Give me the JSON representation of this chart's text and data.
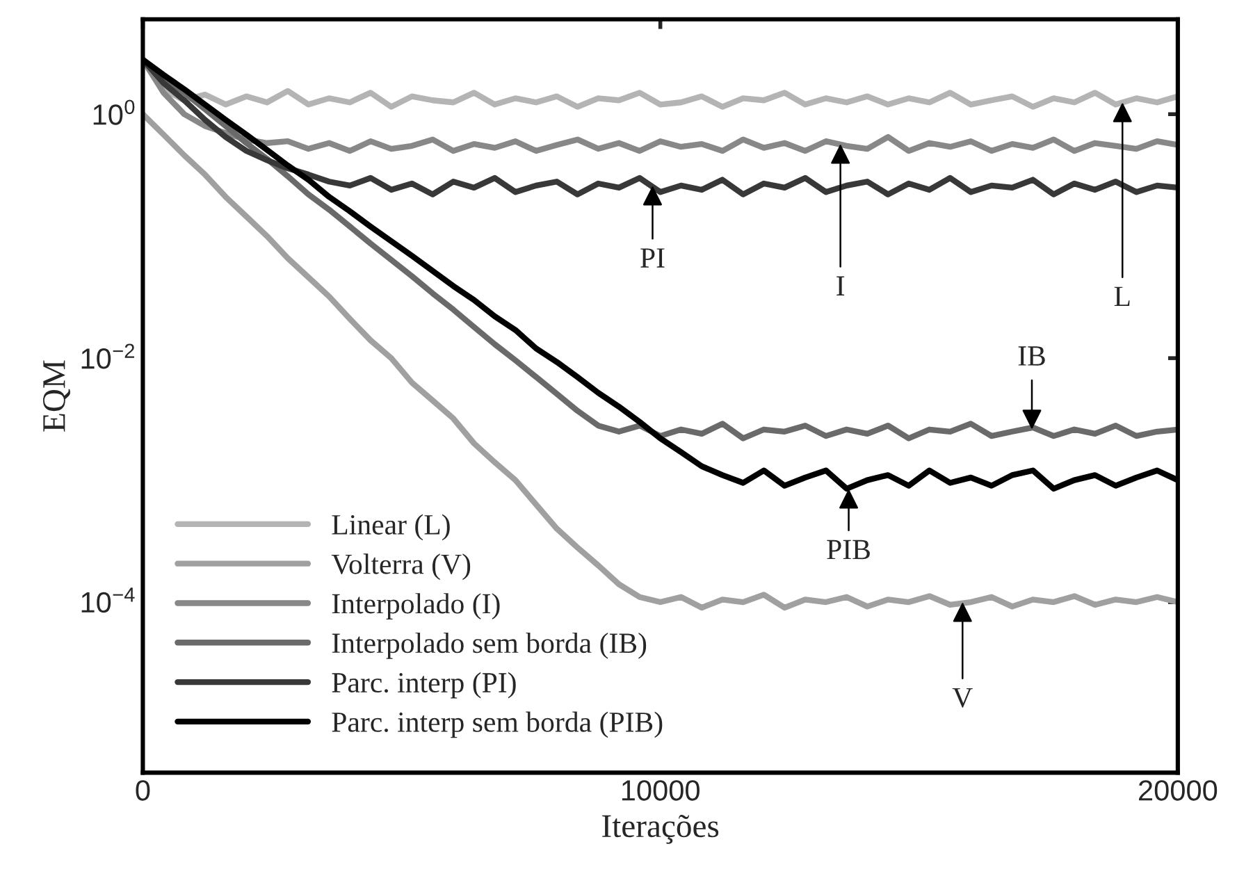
{
  "chart_data": {
    "type": "line",
    "xlabel": "Iterações",
    "ylabel": "EQM",
    "log": "y",
    "grid": false,
    "legend": "bottom left",
    "line_style": "solid",
    "marker": "none",
    "xlim": [
      0,
      20000
    ],
    "xticks": [
      0,
      10000,
      20000
    ],
    "ylim": [
      4e-06,
      6
    ],
    "yticks": [
      {
        "value": 1,
        "label": "10$^{0}$"
      },
      {
        "value": 0.01,
        "label": "10$^{−2}$"
      },
      {
        "value": 0.0001,
        "label": "10$^{−4}$"
      }
    ],
    "x": [
      0,
      400,
      800,
      1200,
      1600,
      2000,
      2400,
      2800,
      3200,
      3600,
      4000,
      4400,
      4800,
      5200,
      5600,
      6000,
      6400,
      6800,
      7200,
      7600,
      8000,
      8400,
      8800,
      9200,
      9600,
      10000,
      10400,
      10800,
      11200,
      11600,
      12000,
      12400,
      12800,
      13200,
      13600,
      14000,
      14400,
      14800,
      15200,
      15600,
      16000,
      16400,
      16800,
      17200,
      17600,
      18000,
      18400,
      18800,
      19200,
      19600,
      20000
    ],
    "series": [
      {
        "name": "Linear (L)",
        "color": "#b4b4b4",
        "values": [
          2.8,
          1.6,
          1.3,
          1.45,
          1.2,
          1.4,
          1.25,
          1.55,
          1.2,
          1.35,
          1.25,
          1.5,
          1.15,
          1.4,
          1.3,
          1.25,
          1.5,
          1.2,
          1.35,
          1.25,
          1.4,
          1.15,
          1.35,
          1.3,
          1.5,
          1.2,
          1.25,
          1.4,
          1.15,
          1.35,
          1.3,
          1.5,
          1.2,
          1.35,
          1.25,
          1.4,
          1.2,
          1.35,
          1.25,
          1.5,
          1.2,
          1.3,
          1.4,
          1.15,
          1.35,
          1.25,
          1.5,
          1.2,
          1.35,
          1.25,
          1.4
        ]
      },
      {
        "name": "Volterra (V)",
        "color": "#a0a0a0",
        "values": [
          1.0,
          0.68,
          0.46,
          0.32,
          0.21,
          0.145,
          0.1,
          0.066,
          0.046,
          0.032,
          0.021,
          0.014,
          0.01,
          0.0063,
          0.0045,
          0.0032,
          0.002,
          0.0014,
          0.001,
          0.00063,
          0.0004,
          0.00028,
          0.0002,
          0.00014,
          0.00011,
          0.0001,
          0.00011,
          9e-05,
          0.000105,
          0.0001,
          0.000115,
          9e-05,
          0.000105,
          0.0001,
          0.00011,
          9.2e-05,
          0.000105,
          0.0001,
          0.000112,
          9.5e-05,
          0.0001,
          0.00011,
          9.2e-05,
          0.000105,
          0.0001,
          0.000112,
          9.5e-05,
          0.000105,
          0.0001,
          0.00011,
          0.0001
        ]
      },
      {
        "name": "Interpolado (I)",
        "color": "#888888",
        "values": [
          2.8,
          1.5,
          1.0,
          0.8,
          0.7,
          0.62,
          0.58,
          0.6,
          0.52,
          0.58,
          0.5,
          0.6,
          0.52,
          0.55,
          0.62,
          0.5,
          0.57,
          0.53,
          0.6,
          0.5,
          0.56,
          0.62,
          0.52,
          0.58,
          0.5,
          0.6,
          0.54,
          0.57,
          0.5,
          0.62,
          0.53,
          0.58,
          0.5,
          0.6,
          0.55,
          0.52,
          0.65,
          0.5,
          0.58,
          0.54,
          0.6,
          0.5,
          0.57,
          0.53,
          0.62,
          0.5,
          0.58,
          0.55,
          0.52,
          0.6,
          0.56
        ]
      },
      {
        "name": "Interpolado sem borda (IB)",
        "color": "#6a6a6a",
        "values": [
          2.8,
          2.05,
          1.5,
          1.1,
          0.8,
          0.58,
          0.43,
          0.31,
          0.22,
          0.165,
          0.12,
          0.087,
          0.064,
          0.047,
          0.034,
          0.025,
          0.018,
          0.013,
          0.0096,
          0.007,
          0.0051,
          0.0037,
          0.0028,
          0.0025,
          0.0028,
          0.0023,
          0.0026,
          0.0024,
          0.0029,
          0.0022,
          0.0026,
          0.0025,
          0.0028,
          0.0023,
          0.0026,
          0.0024,
          0.0028,
          0.0022,
          0.0026,
          0.0025,
          0.0029,
          0.0023,
          0.0025,
          0.0027,
          0.0023,
          0.0026,
          0.0024,
          0.0028,
          0.0023,
          0.0025,
          0.0026
        ]
      },
      {
        "name": "Parc. interp (PI)",
        "color": "#383838",
        "values": [
          2.8,
          1.8,
          1.3,
          0.9,
          0.65,
          0.5,
          0.42,
          0.36,
          0.32,
          0.28,
          0.26,
          0.3,
          0.24,
          0.27,
          0.22,
          0.28,
          0.25,
          0.3,
          0.23,
          0.26,
          0.28,
          0.22,
          0.27,
          0.25,
          0.3,
          0.23,
          0.26,
          0.24,
          0.29,
          0.22,
          0.27,
          0.25,
          0.3,
          0.23,
          0.26,
          0.28,
          0.22,
          0.27,
          0.24,
          0.3,
          0.23,
          0.26,
          0.25,
          0.29,
          0.22,
          0.27,
          0.24,
          0.28,
          0.23,
          0.26,
          0.25
        ]
      },
      {
        "name": "Parc. interp sem borda (PIB)",
        "color": "#000000",
        "values": [
          2.8,
          2.1,
          1.6,
          1.2,
          0.9,
          0.68,
          0.51,
          0.38,
          0.29,
          0.21,
          0.16,
          0.12,
          0.091,
          0.069,
          0.052,
          0.039,
          0.03,
          0.022,
          0.017,
          0.012,
          0.0093,
          0.007,
          0.0052,
          0.004,
          0.003,
          0.0022,
          0.0017,
          0.0013,
          0.0011,
          0.00095,
          0.0012,
          0.0009,
          0.00105,
          0.0012,
          0.00085,
          0.001,
          0.0011,
          0.0009,
          0.0012,
          0.00095,
          0.00105,
          0.0009,
          0.0011,
          0.0012,
          0.00085,
          0.001,
          0.0011,
          0.0009,
          0.00105,
          0.0012,
          0.001
        ]
      }
    ],
    "annotations": [
      {
        "text": "PI",
        "x": 9850,
        "y": 0.26
      },
      {
        "text": "I",
        "x": 13480,
        "y": 0.57
      },
      {
        "text": "L",
        "x": 18930,
        "y": 1.25
      },
      {
        "text": "IB",
        "x": 17180,
        "y": 0.0026
      },
      {
        "text": "PIB",
        "x": 13640,
        "y": 0.00085
      },
      {
        "text": "V",
        "x": 15840,
        "y": 0.0001
      }
    ]
  }
}
